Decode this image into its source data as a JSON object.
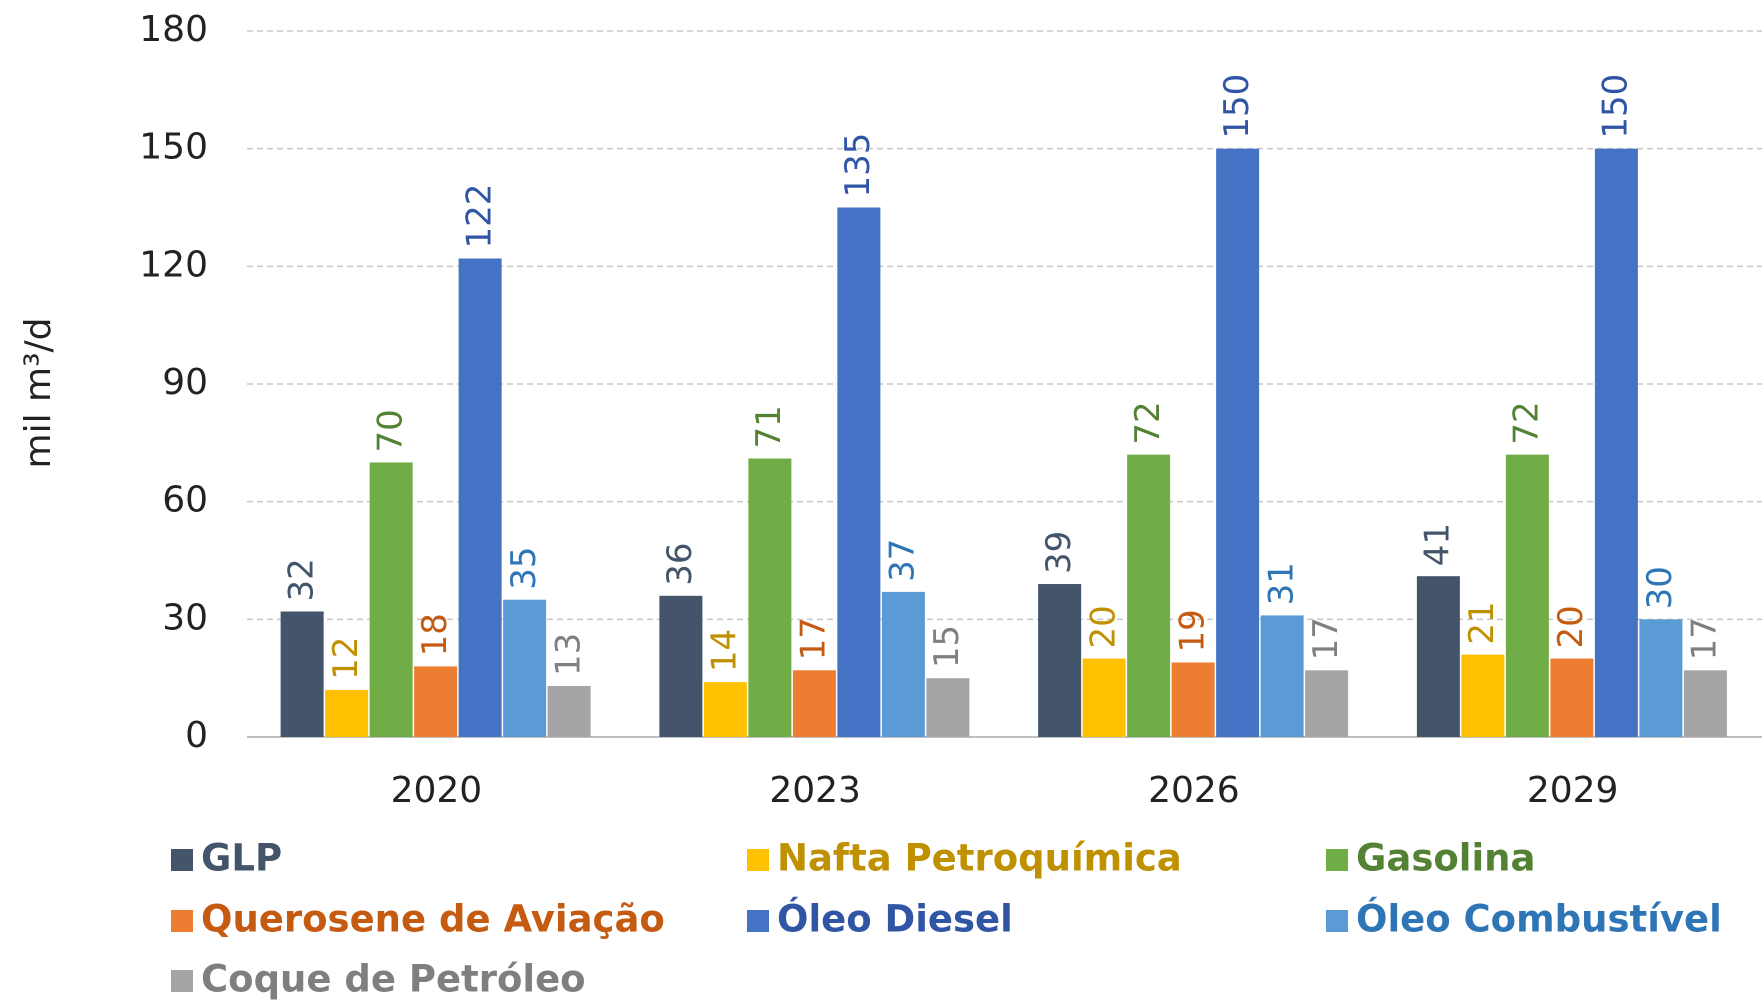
{
  "chart_data": {
    "type": "bar",
    "y_label": "mil m³/d",
    "categories": [
      "2020",
      "2023",
      "2026",
      "2029"
    ],
    "series": [
      {
        "name": "GLP",
        "color": "#44546a",
        "label_color": "#44546a",
        "values": [
          32,
          36,
          39,
          41
        ]
      },
      {
        "name": "Nafta Petroquímica",
        "color": "#ffc000",
        "label_color": "#bf9000",
        "values": [
          12,
          14,
          20,
          21
        ]
      },
      {
        "name": "Gasolina",
        "color": "#70ad47",
        "label_color": "#548235",
        "values": [
          70,
          71,
          72,
          72
        ]
      },
      {
        "name": "Querosene de Aviação",
        "color": "#ed7d31",
        "label_color": "#c55a11",
        "values": [
          18,
          17,
          19,
          20
        ]
      },
      {
        "name": "Óleo Diesel",
        "color": "#4472c4",
        "label_color": "#2f55a4",
        "values": [
          122,
          135,
          150,
          150
        ]
      },
      {
        "name": "Óleo Combustível",
        "color": "#5b9bd5",
        "label_color": "#2e75b6",
        "values": [
          35,
          37,
          31,
          30
        ]
      },
      {
        "name": "Coque de Petróleo",
        "color": "#a5a5a5",
        "label_color": "#7f7f7f",
        "values": [
          13,
          15,
          17,
          17
        ]
      }
    ],
    "ylim": [
      0,
      180
    ],
    "yticks": [
      0,
      30,
      60,
      90,
      120,
      150,
      180
    ],
    "grid": true,
    "legend": "bottom"
  }
}
